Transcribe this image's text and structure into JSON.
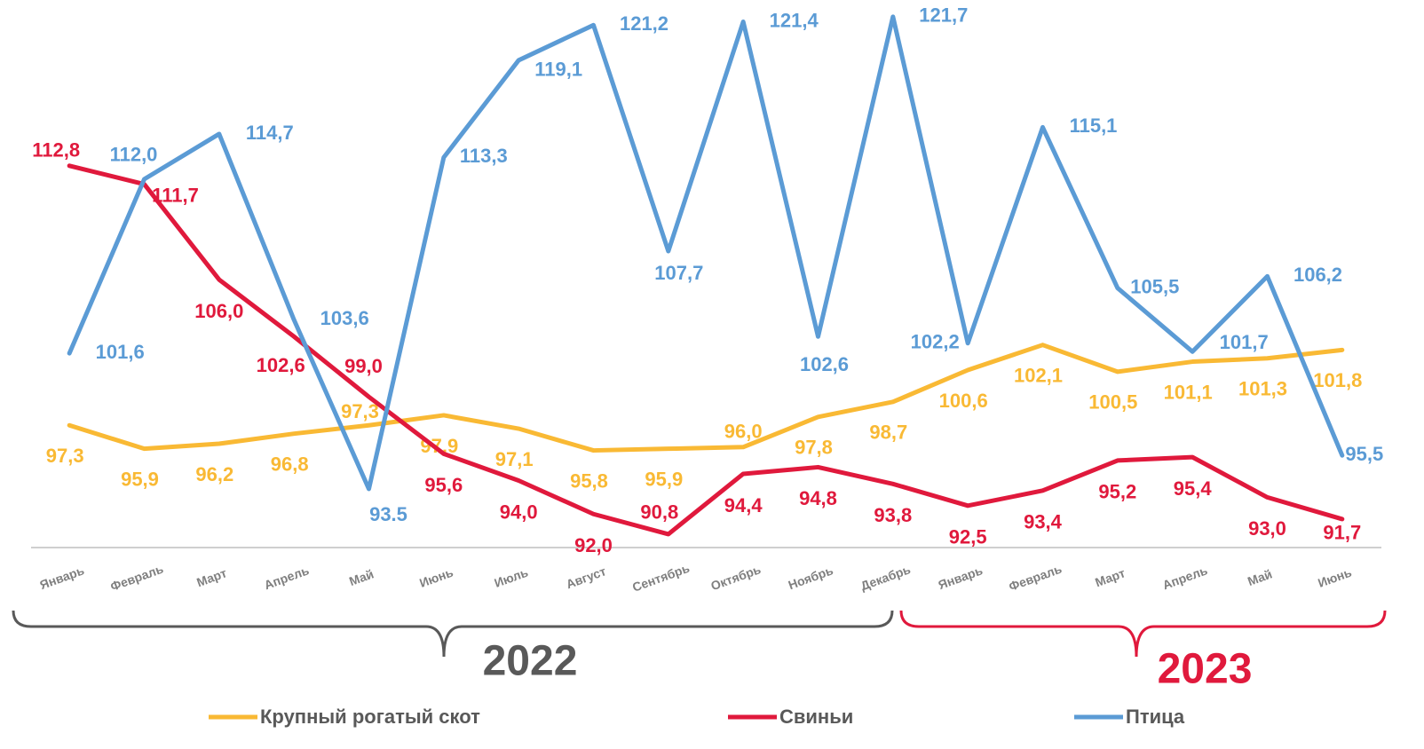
{
  "chart_data": {
    "type": "line",
    "categories": [
      "Январь",
      "Февраль",
      "Март",
      "Апрель",
      "Май",
      "Июнь",
      "Июль",
      "Август",
      "Сентябрь",
      "Октябрь",
      "Ноябрь",
      "Декабрь",
      "Январь",
      "Февраль",
      "Март",
      "Апрель",
      "Май",
      "Июнь"
    ],
    "annotations": [
      "2022",
      "2023"
    ],
    "ylim": [
      90,
      122.7
    ],
    "series": [
      {
        "name": "Крупный рогатый скот",
        "color": "#f9b934",
        "values": [
          97.3,
          95.9,
          96.2,
          96.8,
          97.3,
          97.9,
          97.1,
          95.8,
          95.9,
          96.0,
          97.8,
          98.7,
          100.6,
          102.1,
          100.5,
          101.1,
          101.3,
          101.8
        ],
        "value_labels": [
          "97,3",
          "95,9",
          "96,2",
          "96,8",
          "97,3",
          "97,9",
          "97,1",
          "95,8",
          "95,9",
          "96,0",
          "97,8",
          "98,7",
          "100,6",
          "102,1",
          "100,5",
          "101,1",
          "101,3",
          "101,8"
        ]
      },
      {
        "name": "Свиньи",
        "color": "#e0193c",
        "values": [
          112.8,
          111.7,
          106.0,
          102.6,
          99.0,
          95.6,
          94.0,
          92.0,
          90.8,
          94.4,
          94.8,
          93.8,
          92.5,
          93.4,
          95.2,
          95.4,
          93.0,
          91.7
        ],
        "value_labels": [
          "112,8",
          "111,7",
          "106,0",
          "102,6",
          "99,0",
          "95,6",
          "94,0",
          "92,0",
          "90,8",
          "94,4",
          "94,8",
          "93,8",
          "92,5",
          "93,4",
          "95,2",
          "95,4",
          "93,0",
          "91,7"
        ]
      },
      {
        "name": "Птица",
        "color": "#5b9bd5",
        "values": [
          101.6,
          112.0,
          114.7,
          103.6,
          93.5,
          113.3,
          119.1,
          121.2,
          107.7,
          121.4,
          102.6,
          121.7,
          102.2,
          115.1,
          105.5,
          101.7,
          106.2,
          95.5
        ],
        "value_labels": [
          "101,6",
          "112,0",
          "114,7",
          "103,6",
          "93.5",
          "113,3",
          "119,1",
          "121,2",
          "107,7",
          "121,4",
          "102,6",
          "121,7",
          "102,2",
          "115,1",
          "105,5",
          "101,7",
          "106,2",
          "95,5"
        ]
      }
    ]
  }
}
